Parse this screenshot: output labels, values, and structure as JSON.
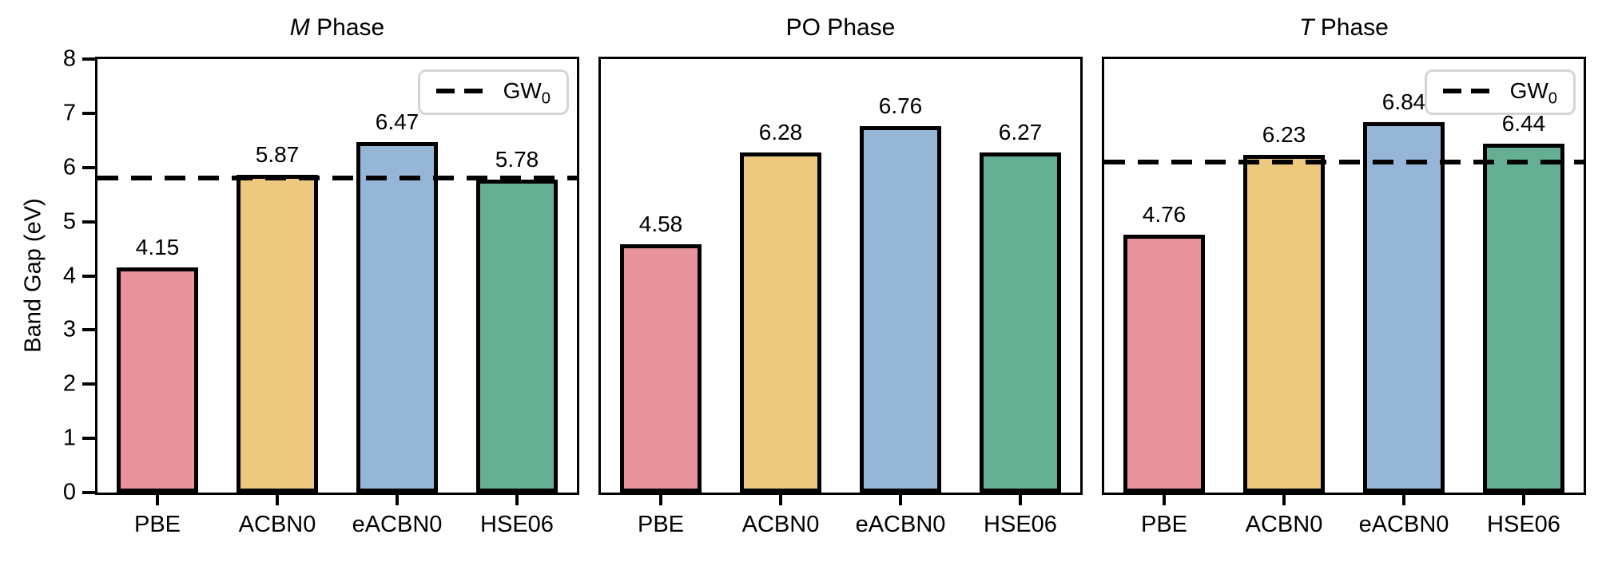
{
  "chart_data": {
    "type": "bar",
    "ylabel": "Band Gap (eV)",
    "ylim": [
      0,
      8
    ],
    "ytick_labels": [
      "0",
      "1",
      "2",
      "3",
      "4",
      "5",
      "6",
      "7",
      "8"
    ],
    "grid": false,
    "categories": [
      "PBE",
      "ACBN0",
      "eACBN0",
      "HSE06"
    ],
    "bar_colors": [
      "#E8929B",
      "#ECC97E",
      "#96B6D8",
      "#65B094"
    ],
    "bar_edge_color": "#000000",
    "reference_line": {
      "name": "GW0",
      "style": "dashed",
      "color": "#000000"
    },
    "legend": {
      "label": "GW",
      "subscript": "0",
      "position": "upper right"
    },
    "panels": [
      {
        "title_italic": "M",
        "title_rest": " Phase",
        "values": [
          4.15,
          5.87,
          6.47,
          5.78
        ],
        "labels": [
          "4.15",
          "5.87",
          "6.47",
          "5.78"
        ],
        "gw0": 5.8,
        "show_legend": true
      },
      {
        "title_italic": "",
        "title_rest": "PO Phase",
        "values": [
          4.58,
          6.28,
          6.76,
          6.27
        ],
        "labels": [
          "4.58",
          "6.28",
          "6.76",
          "6.27"
        ],
        "gw0": null,
        "show_legend": false
      },
      {
        "title_italic": "T",
        "title_rest": " Phase",
        "values": [
          4.76,
          6.23,
          6.84,
          6.44
        ],
        "labels": [
          "4.76",
          "6.23",
          "6.84",
          "6.44"
        ],
        "gw0": 6.1,
        "show_legend": true
      }
    ]
  }
}
